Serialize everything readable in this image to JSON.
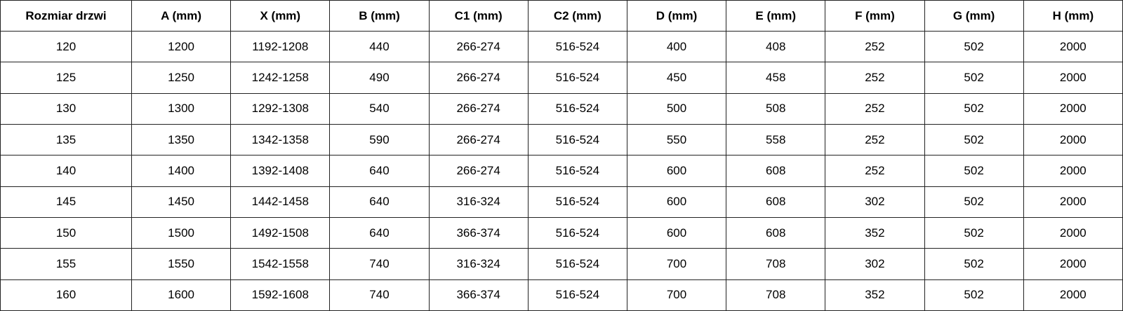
{
  "table": {
    "headers": [
      "Rozmiar drzwi",
      "A (mm)",
      "X (mm)",
      "B (mm)",
      "C1 (mm)",
      "C2 (mm)",
      "D (mm)",
      "E (mm)",
      "F (mm)",
      "G (mm)",
      "H (mm)"
    ],
    "rows": [
      [
        "120",
        "1200",
        "1192-1208",
        "440",
        "266-274",
        "516-524",
        "400",
        "408",
        "252",
        "502",
        "2000"
      ],
      [
        "125",
        "1250",
        "1242-1258",
        "490",
        "266-274",
        "516-524",
        "450",
        "458",
        "252",
        "502",
        "2000"
      ],
      [
        "130",
        "1300",
        "1292-1308",
        "540",
        "266-274",
        "516-524",
        "500",
        "508",
        "252",
        "502",
        "2000"
      ],
      [
        "135",
        "1350",
        "1342-1358",
        "590",
        "266-274",
        "516-524",
        "550",
        "558",
        "252",
        "502",
        "2000"
      ],
      [
        "140",
        "1400",
        "1392-1408",
        "640",
        "266-274",
        "516-524",
        "600",
        "608",
        "252",
        "502",
        "2000"
      ],
      [
        "145",
        "1450",
        "1442-1458",
        "640",
        "316-324",
        "516-524",
        "600",
        "608",
        "302",
        "502",
        "2000"
      ],
      [
        "150",
        "1500",
        "1492-1508",
        "640",
        "366-374",
        "516-524",
        "600",
        "608",
        "352",
        "502",
        "2000"
      ],
      [
        "155",
        "1550",
        "1542-1558",
        "740",
        "316-324",
        "516-524",
        "700",
        "708",
        "302",
        "502",
        "2000"
      ],
      [
        "160",
        "1600",
        "1592-1608",
        "740",
        "366-374",
        "516-524",
        "700",
        "708",
        "352",
        "502",
        "2000"
      ]
    ]
  }
}
